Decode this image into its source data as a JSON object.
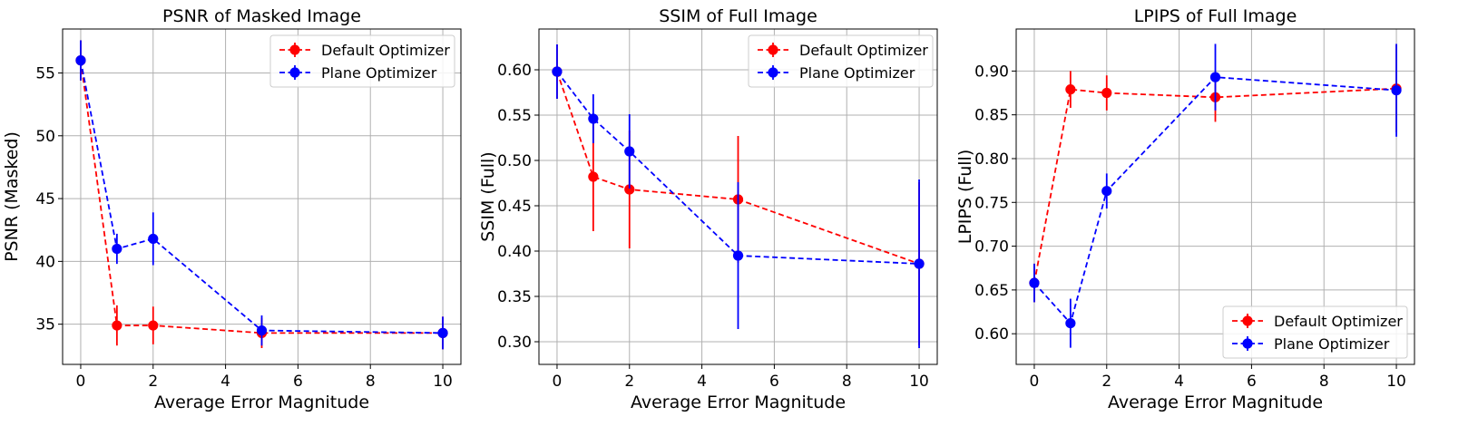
{
  "chart_data": [
    {
      "type": "line",
      "title": "PSNR of Masked Image",
      "xlabel": "Average Error Magnitude",
      "ylabel": "PSNR (Masked)",
      "xlim": [
        -0.5,
        10.5
      ],
      "ylim": [
        31.8,
        58.5
      ],
      "xticks": [
        "0",
        "2",
        "4",
        "6",
        "8",
        "10"
      ],
      "yticks": [
        "35",
        "40",
        "45",
        "50",
        "55"
      ],
      "grid": true,
      "legend_position": "top-right",
      "x": [
        0,
        1,
        2,
        5,
        10
      ],
      "series": [
        {
          "name": "Default Optimizer",
          "color": "#ff0000",
          "values": [
            56.0,
            34.9,
            34.9,
            34.3,
            34.3
          ],
          "errors": [
            1.6,
            1.6,
            1.5,
            1.2,
            1.3
          ]
        },
        {
          "name": "Plane Optimizer",
          "color": "#0000ff",
          "values": [
            56.0,
            41.0,
            41.8,
            34.5,
            34.3
          ],
          "errors": [
            1.6,
            1.2,
            2.1,
            1.2,
            1.3
          ]
        }
      ]
    },
    {
      "type": "line",
      "title": "SSIM of Full Image",
      "xlabel": "Average Error Magnitude",
      "ylabel": "SSIM (Full)",
      "xlim": [
        -0.5,
        10.5
      ],
      "ylim": [
        0.275,
        0.645
      ],
      "xticks": [
        "0",
        "2",
        "4",
        "6",
        "8",
        "10"
      ],
      "yticks": [
        "0.30",
        "0.35",
        "0.40",
        "0.45",
        "0.50",
        "0.55",
        "0.60"
      ],
      "grid": true,
      "legend_position": "top-right",
      "x": [
        0,
        1,
        2,
        5,
        10
      ],
      "series": [
        {
          "name": "Default Optimizer",
          "color": "#ff0000",
          "values": [
            0.598,
            0.482,
            0.468,
            0.457,
            0.386
          ],
          "errors": [
            0.03,
            0.06,
            0.065,
            0.07,
            0.09
          ]
        },
        {
          "name": "Plane Optimizer",
          "color": "#0000ff",
          "values": [
            0.598,
            0.546,
            0.51,
            0.395,
            0.386
          ],
          "errors": [
            0.03,
            0.027,
            0.041,
            0.081,
            0.093
          ]
        }
      ]
    },
    {
      "type": "line",
      "title": "LPIPS of Full Image",
      "xlabel": "Average Error Magnitude",
      "ylabel": "LPIPS (Full)",
      "xlim": [
        -0.5,
        10.5
      ],
      "ylim": [
        0.565,
        0.948
      ],
      "xticks": [
        "0",
        "2",
        "4",
        "6",
        "8",
        "10"
      ],
      "yticks": [
        "0.60",
        "0.65",
        "0.70",
        "0.75",
        "0.80",
        "0.85",
        "0.90"
      ],
      "grid": true,
      "legend_position": "bottom-right",
      "x": [
        0,
        1,
        2,
        5,
        10
      ],
      "series": [
        {
          "name": "Default Optimizer",
          "color": "#ff0000",
          "values": [
            0.658,
            0.879,
            0.875,
            0.87,
            0.88
          ],
          "errors": [
            0.022,
            0.021,
            0.02,
            0.028,
            0.05
          ]
        },
        {
          "name": "Plane Optimizer",
          "color": "#0000ff",
          "values": [
            0.658,
            0.612,
            0.763,
            0.893,
            0.878
          ],
          "errors": [
            0.022,
            0.028,
            0.02,
            0.038,
            0.053
          ]
        }
      ]
    }
  ]
}
